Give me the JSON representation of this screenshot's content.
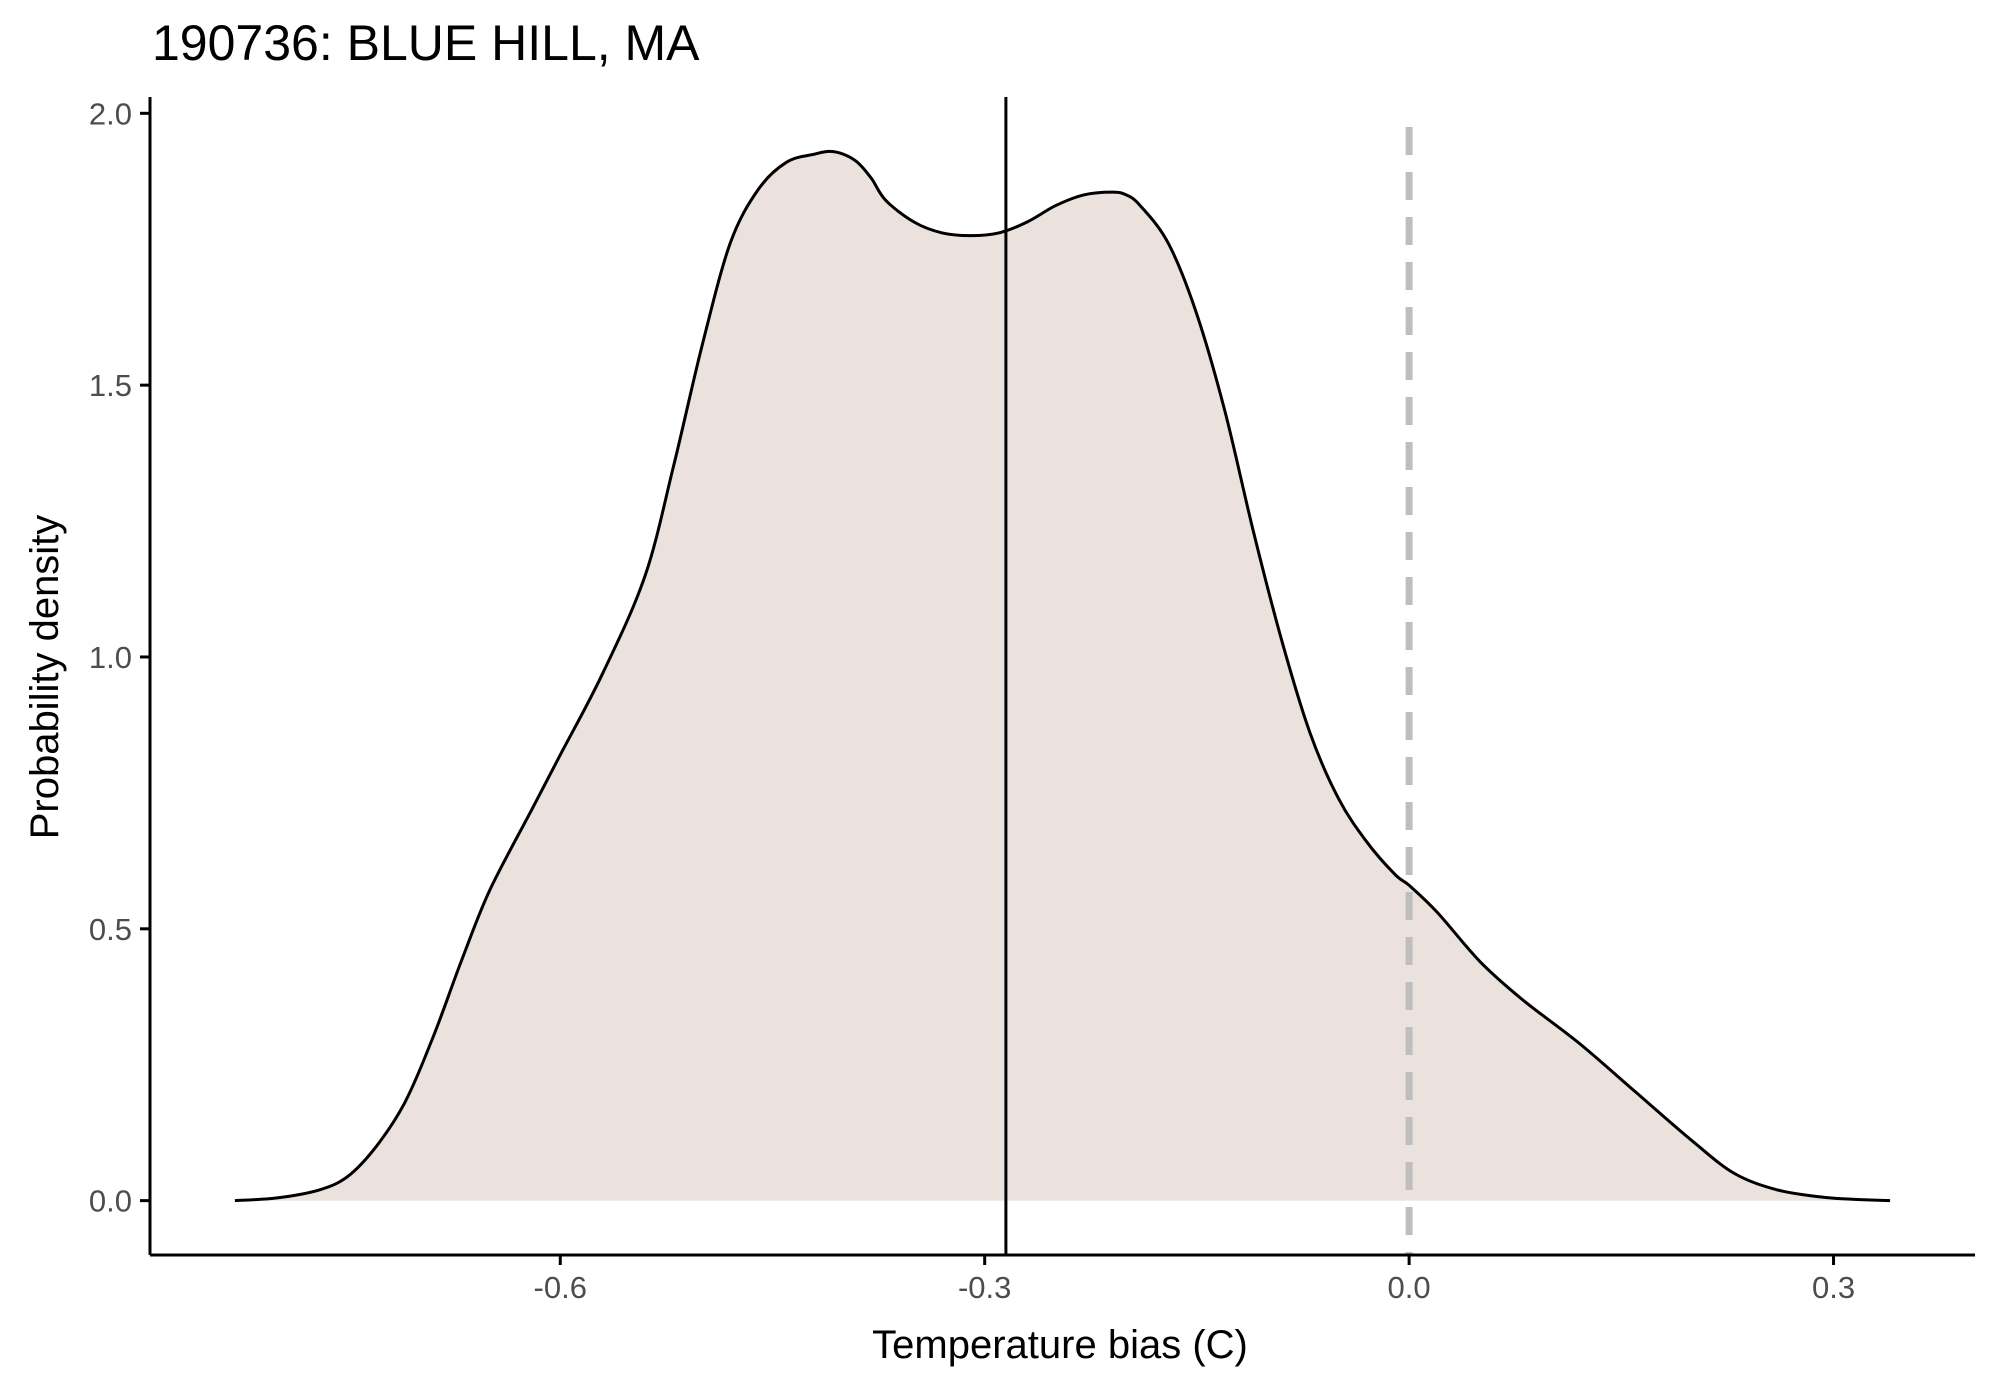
{
  "chart_data": {
    "type": "area",
    "title": "190736: BLUE HILL, MA",
    "xlabel": "Temperature bias (C)",
    "ylabel": "Probability density",
    "xlim": [
      -0.89,
      0.4
    ],
    "ylim": [
      -0.1,
      2.03
    ],
    "x_ticks": [
      {
        "value": -0.6,
        "label": "-0.6"
      },
      {
        "value": -0.3,
        "label": "-0.3"
      },
      {
        "value": 0.0,
        "label": "0.0"
      },
      {
        "value": 0.3,
        "label": "0.3"
      }
    ],
    "y_ticks": [
      {
        "value": 0.0,
        "label": "0.0"
      },
      {
        "value": 0.5,
        "label": "0.5"
      },
      {
        "value": 1.0,
        "label": "1.0"
      },
      {
        "value": 1.5,
        "label": "1.5"
      },
      {
        "value": 2.0,
        "label": "2.0"
      }
    ],
    "grid": false,
    "legend": "none",
    "colors": {
      "fill": "#ebe1dd",
      "line": "#000000",
      "mean_line": "#000000",
      "zero_line": "#bebebe"
    },
    "mean_line_x": -0.285,
    "reference_line_x": 0.0,
    "series": [
      {
        "x": [
          -0.83,
          -0.8,
          -0.77,
          -0.75,
          -0.73,
          -0.71,
          -0.69,
          -0.67,
          -0.65,
          -0.62,
          -0.6,
          -0.57,
          -0.54,
          -0.52,
          -0.5,
          -0.48,
          -0.46,
          -0.44,
          -0.42,
          -0.41,
          -0.4,
          -0.39,
          -0.38,
          -0.37,
          -0.35,
          -0.33,
          -0.31,
          -0.29,
          -0.27,
          -0.25,
          -0.23,
          -0.21,
          -0.2,
          -0.19,
          -0.17,
          -0.15,
          -0.13,
          -0.11,
          -0.09,
          -0.07,
          -0.05,
          -0.03,
          -0.01,
          0.0,
          0.02,
          0.05,
          0.08,
          0.12,
          0.16,
          0.2,
          0.23,
          0.26,
          0.29,
          0.31,
          0.34
        ],
        "y": [
          0.0,
          0.005,
          0.02,
          0.045,
          0.1,
          0.18,
          0.3,
          0.44,
          0.57,
          0.72,
          0.82,
          0.97,
          1.15,
          1.35,
          1.57,
          1.76,
          1.86,
          1.91,
          1.925,
          1.93,
          1.925,
          1.91,
          1.88,
          1.84,
          1.8,
          1.78,
          1.775,
          1.78,
          1.8,
          1.83,
          1.85,
          1.855,
          1.85,
          1.83,
          1.76,
          1.63,
          1.45,
          1.23,
          1.03,
          0.86,
          0.74,
          0.66,
          0.6,
          0.58,
          0.53,
          0.44,
          0.37,
          0.29,
          0.2,
          0.11,
          0.05,
          0.02,
          0.007,
          0.003,
          0.0
        ]
      }
    ]
  }
}
